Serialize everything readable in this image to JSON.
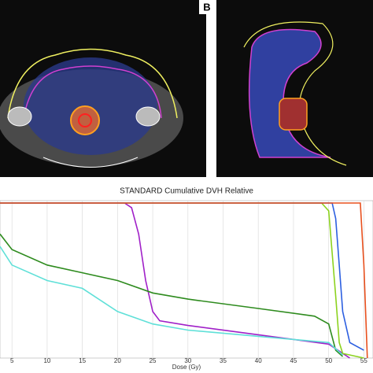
{
  "panel_label": "B",
  "chart_data": {
    "type": "line",
    "title": "STANDARD Cumulative DVH Relative",
    "xlabel": "Dose (Gy)",
    "xlim": [
      3.3,
      56.3
    ],
    "ylim": [
      0,
      100
    ],
    "xticks": [
      5,
      10,
      15,
      20,
      25,
      30,
      35,
      40,
      45,
      50,
      55
    ],
    "grid": true,
    "series": [
      {
        "color": "#a020c8",
        "x": [
          3.3,
          21,
          22,
          23,
          24,
          25,
          26,
          30,
          40,
          50,
          52,
          53
        ],
        "values": [
          100,
          100,
          97,
          80,
          50,
          30,
          24,
          21,
          15,
          9,
          3,
          0
        ]
      },
      {
        "color": "#2e8b1e",
        "x": [
          3.3,
          5,
          10,
          15,
          20,
          25,
          30,
          40,
          48,
          50,
          51,
          52
        ],
        "values": [
          80,
          70,
          60,
          55,
          50,
          42,
          38,
          32,
          27,
          22,
          5,
          1
        ]
      },
      {
        "color": "#5fe0d8",
        "x": [
          3.3,
          5,
          10,
          15,
          20,
          25,
          30,
          40,
          50,
          52
        ],
        "values": [
          72,
          60,
          50,
          45,
          30,
          22,
          18,
          14,
          10,
          2
        ]
      },
      {
        "color": "#8cd21e",
        "x": [
          3.3,
          49,
          50,
          51,
          51.5,
          52,
          55
        ],
        "values": [
          100,
          100,
          95,
          40,
          10,
          3,
          0
        ]
      },
      {
        "color": "#2c5fe0",
        "x": [
          3.3,
          50.5,
          51,
          51.5,
          52,
          53,
          55
        ],
        "values": [
          100,
          100,
          90,
          60,
          30,
          10,
          5
        ]
      },
      {
        "color": "#e8501e",
        "x": [
          3.3,
          54.5,
          55,
          55.5
        ],
        "values": [
          100,
          100,
          60,
          0
        ]
      }
    ]
  }
}
